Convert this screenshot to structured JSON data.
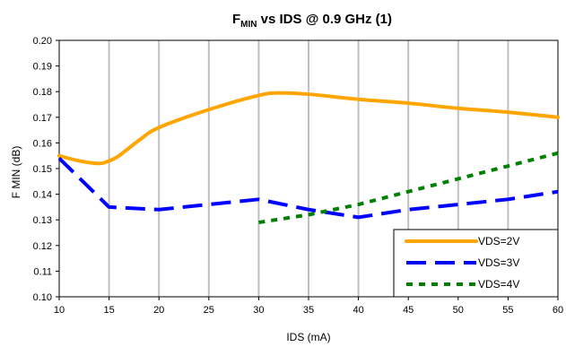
{
  "chart_data": {
    "type": "line",
    "title": {
      "prefix": "F",
      "subscript": "MIN",
      "suffix": " vs IDS @ 0.9 GHz (1)"
    },
    "xlabel": "IDS (mA)",
    "ylabel": "F MIN (dB)",
    "xlim": [
      10,
      60
    ],
    "ylim": [
      0.1,
      0.2
    ],
    "x_ticks": [
      "10",
      "15",
      "20",
      "25",
      "30",
      "35",
      "40",
      "45",
      "50",
      "55",
      "60"
    ],
    "y_ticks": [
      "0.10",
      "0.11",
      "0.12",
      "0.13",
      "0.14",
      "0.15",
      "0.16",
      "0.17",
      "0.18",
      "0.19",
      "0.20"
    ],
    "grid": "vertical",
    "legend_position": "bottom-right",
    "series": [
      {
        "name": "VDS=2V",
        "color": "#FFA500",
        "style": "solid",
        "x": [
          10,
          12,
          14,
          15,
          16,
          18,
          20,
          25,
          30,
          32,
          35,
          40,
          45,
          50,
          55,
          60
        ],
        "y": [
          0.155,
          0.153,
          0.152,
          0.153,
          0.155,
          0.161,
          0.166,
          0.173,
          0.1785,
          0.1795,
          0.179,
          0.177,
          0.1755,
          0.1735,
          0.172,
          0.17
        ]
      },
      {
        "name": "VDS=3V",
        "color": "#0000FF",
        "style": "dashed",
        "x": [
          10,
          15,
          20,
          25,
          30,
          35,
          40,
          45,
          50,
          55,
          60
        ],
        "y": [
          0.154,
          0.135,
          0.134,
          0.136,
          0.138,
          0.134,
          0.131,
          0.134,
          0.136,
          0.138,
          0.141
        ]
      },
      {
        "name": "VDS=4V",
        "color": "#008000",
        "style": "dotted",
        "x": [
          30,
          35,
          40,
          45,
          50,
          55,
          60
        ],
        "y": [
          0.129,
          0.132,
          0.136,
          0.141,
          0.146,
          0.151,
          0.156
        ]
      }
    ]
  }
}
